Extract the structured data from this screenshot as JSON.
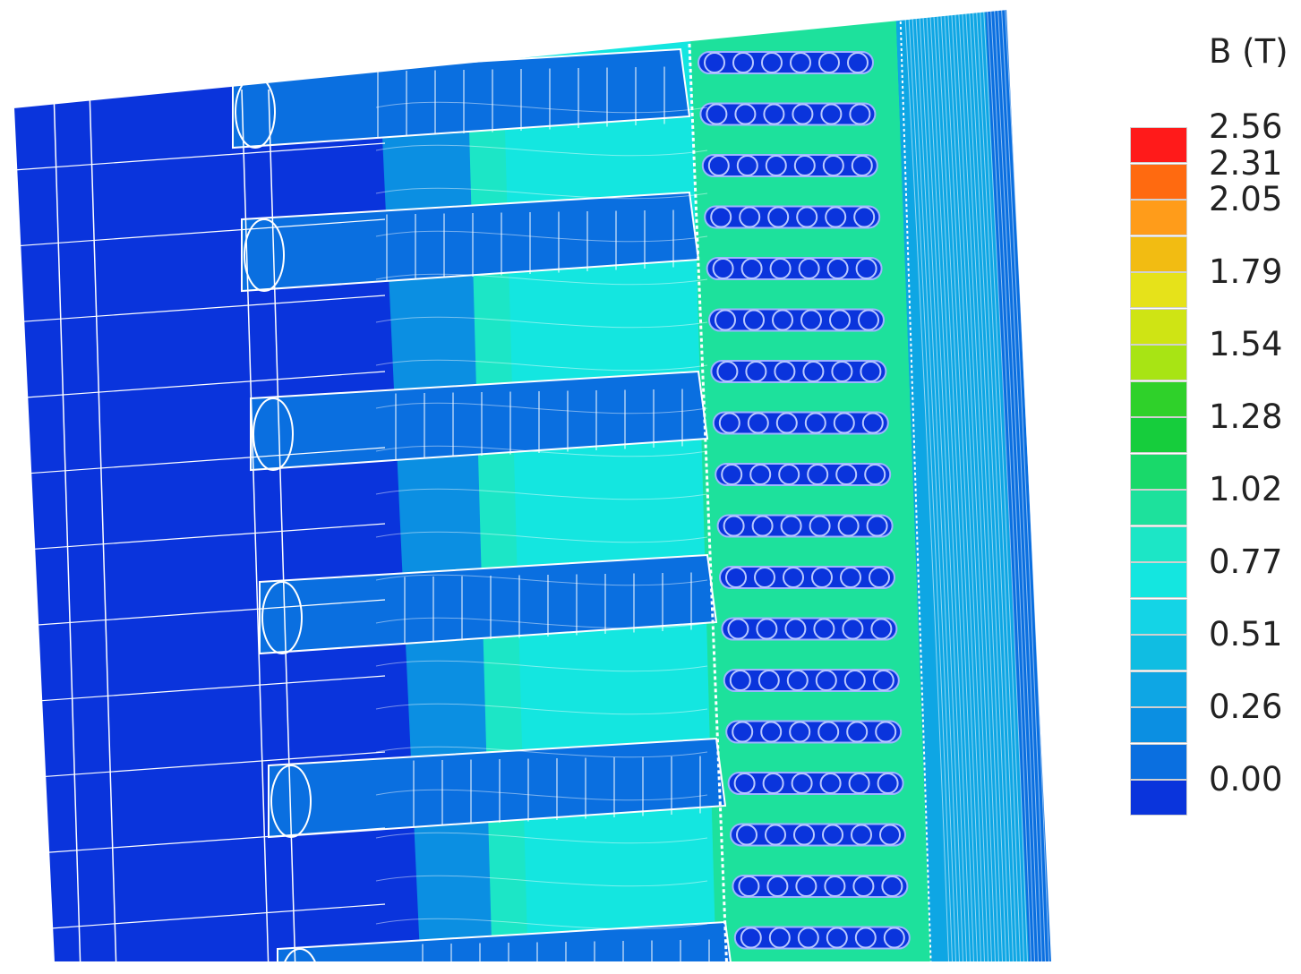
{
  "legend": {
    "title": "B (T)",
    "levels": [
      {
        "value": "2.56",
        "color": "#ff1a1a"
      },
      {
        "value": "2.31",
        "color": "#ff6a10"
      },
      {
        "value": "2.05",
        "color": "#ff9c1a"
      },
      {
        "value": "",
        "color": "#f2bc12"
      },
      {
        "value": "1.79",
        "color": "#e6e21a"
      },
      {
        "value": "",
        "color": "#cfe414"
      },
      {
        "value": "1.54",
        "color": "#a8e414"
      },
      {
        "value": "",
        "color": "#2fd12a"
      },
      {
        "value": "1.28",
        "color": "#16cd3c"
      },
      {
        "value": "",
        "color": "#19d96a"
      },
      {
        "value": "1.02",
        "color": "#1de19c"
      },
      {
        "value": "",
        "color": "#1ce6c6"
      },
      {
        "value": "0.77",
        "color": "#14e6e0"
      },
      {
        "value": "",
        "color": "#14d4e6"
      },
      {
        "value": "0.51",
        "color": "#10bde2"
      },
      {
        "value": "",
        "color": "#0ea6e4"
      },
      {
        "value": "0.26",
        "color": "#0b8fe2"
      },
      {
        "value": "",
        "color": "#0a6fe0"
      },
      {
        "value": "0.00",
        "color": "#0a34dc"
      }
    ]
  },
  "colors": {
    "low": "#0a34dc",
    "lowmid": "#0a6fe0",
    "mid": "#0b8fe2",
    "cyan": "#14e6e0",
    "green": "#1de19c",
    "mesh": "#ffffff"
  }
}
